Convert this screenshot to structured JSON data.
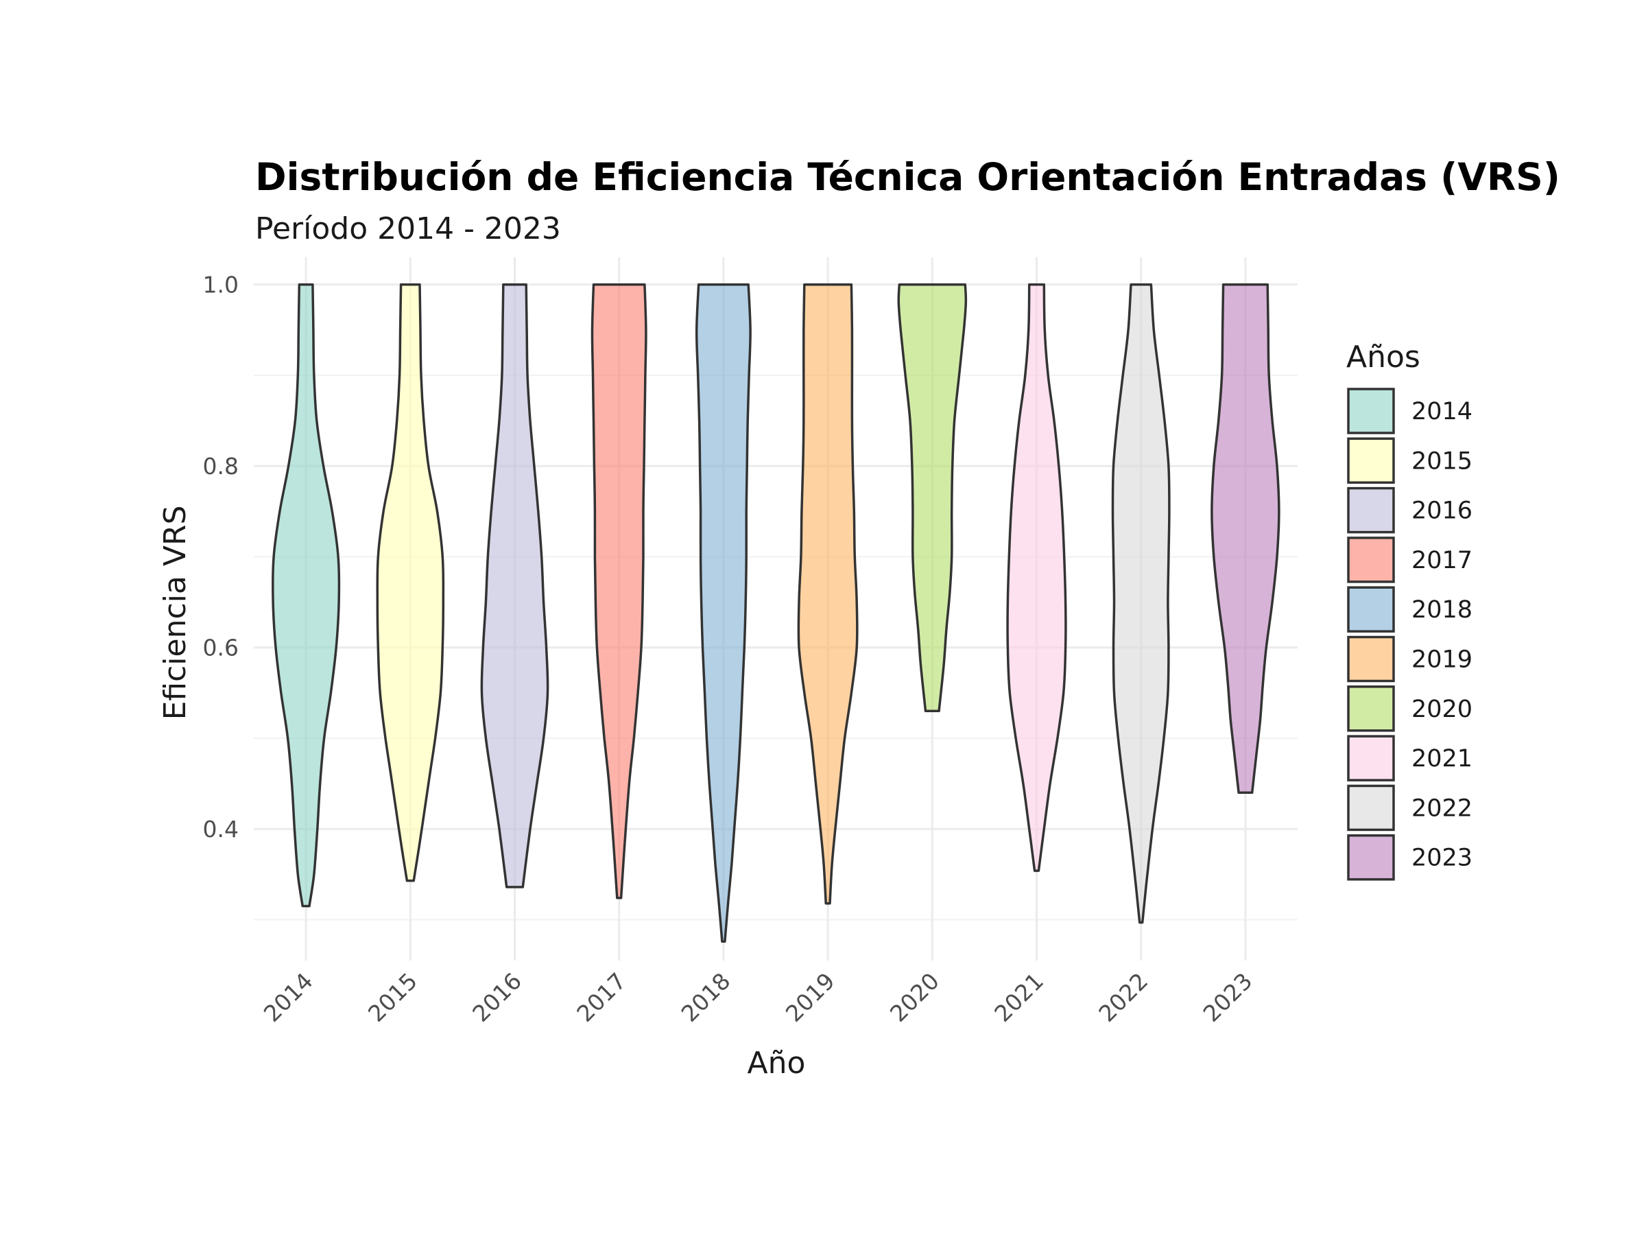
{
  "chart_data": {
    "type": "violin",
    "title": "Distribución de Eficiencia Técnica Orientación Entradas (VRS)",
    "subtitle": "Período 2014 - 2023",
    "xlabel": "Año",
    "ylabel": "Eficiencia VRS",
    "ylim": [
      0.255,
      1.03
    ],
    "y_ticks": [
      "0.4",
      "0.6",
      "0.8",
      "1.0"
    ],
    "y_tick_values": [
      0.4,
      0.6,
      0.8,
      1.0
    ],
    "grid": true,
    "legend": {
      "title": "Años",
      "placement": "right"
    },
    "categories": [
      "2014",
      "2015",
      "2016",
      "2017",
      "2018",
      "2019",
      "2020",
      "2021",
      "2022",
      "2023"
    ],
    "series": [
      {
        "name": "2014",
        "color": "#8DD3C7",
        "min": 0.315,
        "max": 1.0,
        "density": [
          [
            0.315,
            0.1
          ],
          [
            0.35,
            0.24
          ],
          [
            0.4,
            0.34
          ],
          [
            0.45,
            0.42
          ],
          [
            0.5,
            0.54
          ],
          [
            0.55,
            0.74
          ],
          [
            0.6,
            0.9
          ],
          [
            0.65,
            0.98
          ],
          [
            0.7,
            0.96
          ],
          [
            0.75,
            0.78
          ],
          [
            0.8,
            0.52
          ],
          [
            0.85,
            0.32
          ],
          [
            0.9,
            0.24
          ],
          [
            0.95,
            0.22
          ],
          [
            1.0,
            0.2
          ]
        ]
      },
      {
        "name": "2015",
        "color": "#FFFFB3",
        "min": 0.343,
        "max": 1.0,
        "density": [
          [
            0.343,
            0.1
          ],
          [
            0.38,
            0.26
          ],
          [
            0.42,
            0.42
          ],
          [
            0.46,
            0.58
          ],
          [
            0.5,
            0.74
          ],
          [
            0.55,
            0.9
          ],
          [
            0.6,
            0.96
          ],
          [
            0.65,
            0.98
          ],
          [
            0.7,
            0.96
          ],
          [
            0.75,
            0.8
          ],
          [
            0.8,
            0.54
          ],
          [
            0.85,
            0.4
          ],
          [
            0.9,
            0.32
          ],
          [
            0.95,
            0.3
          ],
          [
            1.0,
            0.28
          ]
        ]
      },
      {
        "name": "2016",
        "color": "#BEBADA",
        "min": 0.336,
        "max": 1.0,
        "density": [
          [
            0.336,
            0.24
          ],
          [
            0.4,
            0.46
          ],
          [
            0.45,
            0.66
          ],
          [
            0.5,
            0.86
          ],
          [
            0.55,
            0.98
          ],
          [
            0.6,
            0.94
          ],
          [
            0.65,
            0.86
          ],
          [
            0.7,
            0.8
          ],
          [
            0.75,
            0.7
          ],
          [
            0.8,
            0.58
          ],
          [
            0.85,
            0.46
          ],
          [
            0.9,
            0.38
          ],
          [
            0.95,
            0.36
          ],
          [
            1.0,
            0.34
          ]
        ]
      },
      {
        "name": "2017",
        "color": "#FB8072",
        "min": 0.324,
        "max": 1.0,
        "density": [
          [
            0.324,
            0.06
          ],
          [
            0.38,
            0.16
          ],
          [
            0.45,
            0.3
          ],
          [
            0.5,
            0.44
          ],
          [
            0.55,
            0.56
          ],
          [
            0.6,
            0.66
          ],
          [
            0.65,
            0.7
          ],
          [
            0.7,
            0.72
          ],
          [
            0.75,
            0.72
          ],
          [
            0.8,
            0.74
          ],
          [
            0.85,
            0.76
          ],
          [
            0.9,
            0.78
          ],
          [
            0.95,
            0.8
          ],
          [
            1.0,
            0.76
          ]
        ]
      },
      {
        "name": "2018",
        "color": "#80B1D3",
        "min": 0.276,
        "max": 1.0,
        "density": [
          [
            0.276,
            0.04
          ],
          [
            0.32,
            0.14
          ],
          [
            0.36,
            0.24
          ],
          [
            0.4,
            0.32
          ],
          [
            0.45,
            0.42
          ],
          [
            0.5,
            0.5
          ],
          [
            0.55,
            0.56
          ],
          [
            0.6,
            0.62
          ],
          [
            0.65,
            0.66
          ],
          [
            0.7,
            0.68
          ],
          [
            0.75,
            0.68
          ],
          [
            0.8,
            0.7
          ],
          [
            0.85,
            0.72
          ],
          [
            0.9,
            0.76
          ],
          [
            0.95,
            0.8
          ],
          [
            1.0,
            0.74
          ]
        ]
      },
      {
        "name": "2019",
        "color": "#FDB462",
        "min": 0.318,
        "max": 1.0,
        "density": [
          [
            0.318,
            0.06
          ],
          [
            0.36,
            0.12
          ],
          [
            0.4,
            0.22
          ],
          [
            0.45,
            0.36
          ],
          [
            0.5,
            0.5
          ],
          [
            0.55,
            0.7
          ],
          [
            0.6,
            0.86
          ],
          [
            0.65,
            0.86
          ],
          [
            0.7,
            0.8
          ],
          [
            0.75,
            0.78
          ],
          [
            0.8,
            0.74
          ],
          [
            0.85,
            0.72
          ],
          [
            0.9,
            0.72
          ],
          [
            0.95,
            0.72
          ],
          [
            1.0,
            0.7
          ]
        ]
      },
      {
        "name": "2020",
        "color": "#B3DE69",
        "min": 0.53,
        "max": 1.0,
        "density": [
          [
            0.53,
            0.2
          ],
          [
            0.58,
            0.34
          ],
          [
            0.62,
            0.42
          ],
          [
            0.66,
            0.52
          ],
          [
            0.7,
            0.58
          ],
          [
            0.75,
            0.58
          ],
          [
            0.8,
            0.6
          ],
          [
            0.85,
            0.66
          ],
          [
            0.9,
            0.8
          ],
          [
            0.95,
            0.94
          ],
          [
            0.98,
            1.0
          ],
          [
            1.0,
            0.98
          ]
        ]
      },
      {
        "name": "2021",
        "color": "#FCCDE5",
        "min": 0.354,
        "max": 1.0,
        "density": [
          [
            0.354,
            0.06
          ],
          [
            0.4,
            0.22
          ],
          [
            0.45,
            0.4
          ],
          [
            0.5,
            0.62
          ],
          [
            0.55,
            0.8
          ],
          [
            0.6,
            0.86
          ],
          [
            0.65,
            0.86
          ],
          [
            0.7,
            0.82
          ],
          [
            0.75,
            0.76
          ],
          [
            0.8,
            0.66
          ],
          [
            0.85,
            0.52
          ],
          [
            0.9,
            0.34
          ],
          [
            0.95,
            0.24
          ],
          [
            1.0,
            0.22
          ]
        ]
      },
      {
        "name": "2022",
        "color": "#D9D9D9",
        "min": 0.297,
        "max": 1.0,
        "density": [
          [
            0.297,
            0.04
          ],
          [
            0.34,
            0.16
          ],
          [
            0.4,
            0.34
          ],
          [
            0.45,
            0.52
          ],
          [
            0.5,
            0.68
          ],
          [
            0.55,
            0.8
          ],
          [
            0.6,
            0.82
          ],
          [
            0.65,
            0.8
          ],
          [
            0.7,
            0.82
          ],
          [
            0.75,
            0.84
          ],
          [
            0.8,
            0.82
          ],
          [
            0.85,
            0.7
          ],
          [
            0.9,
            0.54
          ],
          [
            0.95,
            0.38
          ],
          [
            1.0,
            0.3
          ]
        ]
      },
      {
        "name": "2023",
        "color": "#BC80BD",
        "min": 0.44,
        "max": 1.0,
        "density": [
          [
            0.44,
            0.2
          ],
          [
            0.48,
            0.32
          ],
          [
            0.52,
            0.44
          ],
          [
            0.56,
            0.52
          ],
          [
            0.6,
            0.62
          ],
          [
            0.65,
            0.8
          ],
          [
            0.7,
            0.94
          ],
          [
            0.75,
            1.0
          ],
          [
            0.8,
            0.94
          ],
          [
            0.85,
            0.8
          ],
          [
            0.9,
            0.7
          ],
          [
            0.95,
            0.68
          ],
          [
            1.0,
            0.66
          ]
        ]
      }
    ]
  }
}
